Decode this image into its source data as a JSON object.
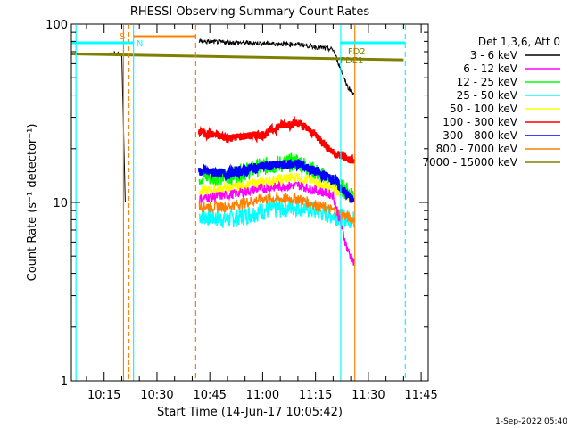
{
  "chart_data": {
    "type": "line",
    "title": "RHESSI Observing Summary Count Rates",
    "xlabel": "Start Time (14-Jun-17 10:05:42)",
    "ylabel": "Count Rate (s⁻¹ detector⁻¹)",
    "yscale": "log",
    "ylim": [
      1,
      100
    ],
    "xlim": [
      "10:05:42",
      "11:47:00"
    ],
    "y_ticks": [
      "1",
      "10",
      "100"
    ],
    "x_ticks": [
      "10:15",
      "10:30",
      "10:45",
      "11:00",
      "11:15",
      "11:30",
      "11:45"
    ],
    "legend_title": "Det 1,3,6, Att 0",
    "legend_position": "right",
    "series": [
      {
        "name": "3 - 6 keV",
        "color": "#000000",
        "x": [
          "10:17",
          "10:20",
          "10:21",
          "10:42",
          "10:50",
          "11:00",
          "11:10",
          "11:20",
          "11:24",
          "11:26"
        ],
        "values": [
          68,
          68,
          10,
          80,
          79,
          78,
          77,
          72,
          45,
          40
        ]
      },
      {
        "name": "6 - 12 keV",
        "color": "#ff00ff",
        "x": [
          "10:42",
          "10:50",
          "11:00",
          "11:10",
          "11:20",
          "11:24",
          "11:26"
        ],
        "values": [
          10.5,
          11,
          12,
          12.5,
          11,
          5.5,
          4.5
        ]
      },
      {
        "name": "12 - 25 keV",
        "color": "#00ff00",
        "x": [
          "10:42",
          "10:50",
          "11:00",
          "11:10",
          "11:20",
          "11:26"
        ],
        "values": [
          14,
          14,
          16,
          17,
          13,
          11
        ]
      },
      {
        "name": "25 - 50 keV",
        "color": "#00ffff",
        "x": [
          "10:42",
          "10:50",
          "11:00",
          "11:10",
          "11:20",
          "11:26"
        ],
        "values": [
          8.5,
          8,
          9,
          9.5,
          8.5,
          8
        ]
      },
      {
        "name": "50 - 100 keV",
        "color": "#ffff00",
        "x": [
          "10:42",
          "10:50",
          "11:00",
          "11:10",
          "11:20",
          "11:26"
        ],
        "values": [
          11.5,
          12,
          13,
          14,
          12,
          10.5
        ]
      },
      {
        "name": "100 - 300 keV",
        "color": "#ff0000",
        "x": [
          "10:42",
          "10:50",
          "11:00",
          "11:05",
          "11:10",
          "11:15",
          "11:20",
          "11:26"
        ],
        "values": [
          25,
          23,
          24,
          27,
          28,
          24,
          19,
          17
        ]
      },
      {
        "name": "300 - 800 keV",
        "color": "#0000ff",
        "x": [
          "10:42",
          "10:50",
          "11:00",
          "11:10",
          "11:20",
          "11:26"
        ],
        "values": [
          15,
          14.5,
          16,
          16.5,
          13.5,
          10
        ]
      },
      {
        "name": "800 - 7000 keV",
        "color": "#ff8000",
        "x": [
          "10:42",
          "10:50",
          "11:00",
          "11:10",
          "11:20",
          "11:26"
        ],
        "values": [
          9.5,
          9.5,
          10.5,
          10.5,
          9,
          8
        ]
      },
      {
        "name": "7000 - 15000 keV",
        "color": "#808000",
        "x": [
          "10:05:42",
          "11:40"
        ],
        "values": [
          68,
          63
        ]
      }
    ],
    "annotations": [
      {
        "text": "S",
        "color": "#ff8000"
      },
      {
        "text": "N",
        "color": "#00ffff"
      },
      {
        "text": "FD2",
        "color": "#808000"
      },
      {
        "text": "FDE1",
        "color": "#808000"
      }
    ],
    "footer": "1-Sep-2022 05:40"
  }
}
